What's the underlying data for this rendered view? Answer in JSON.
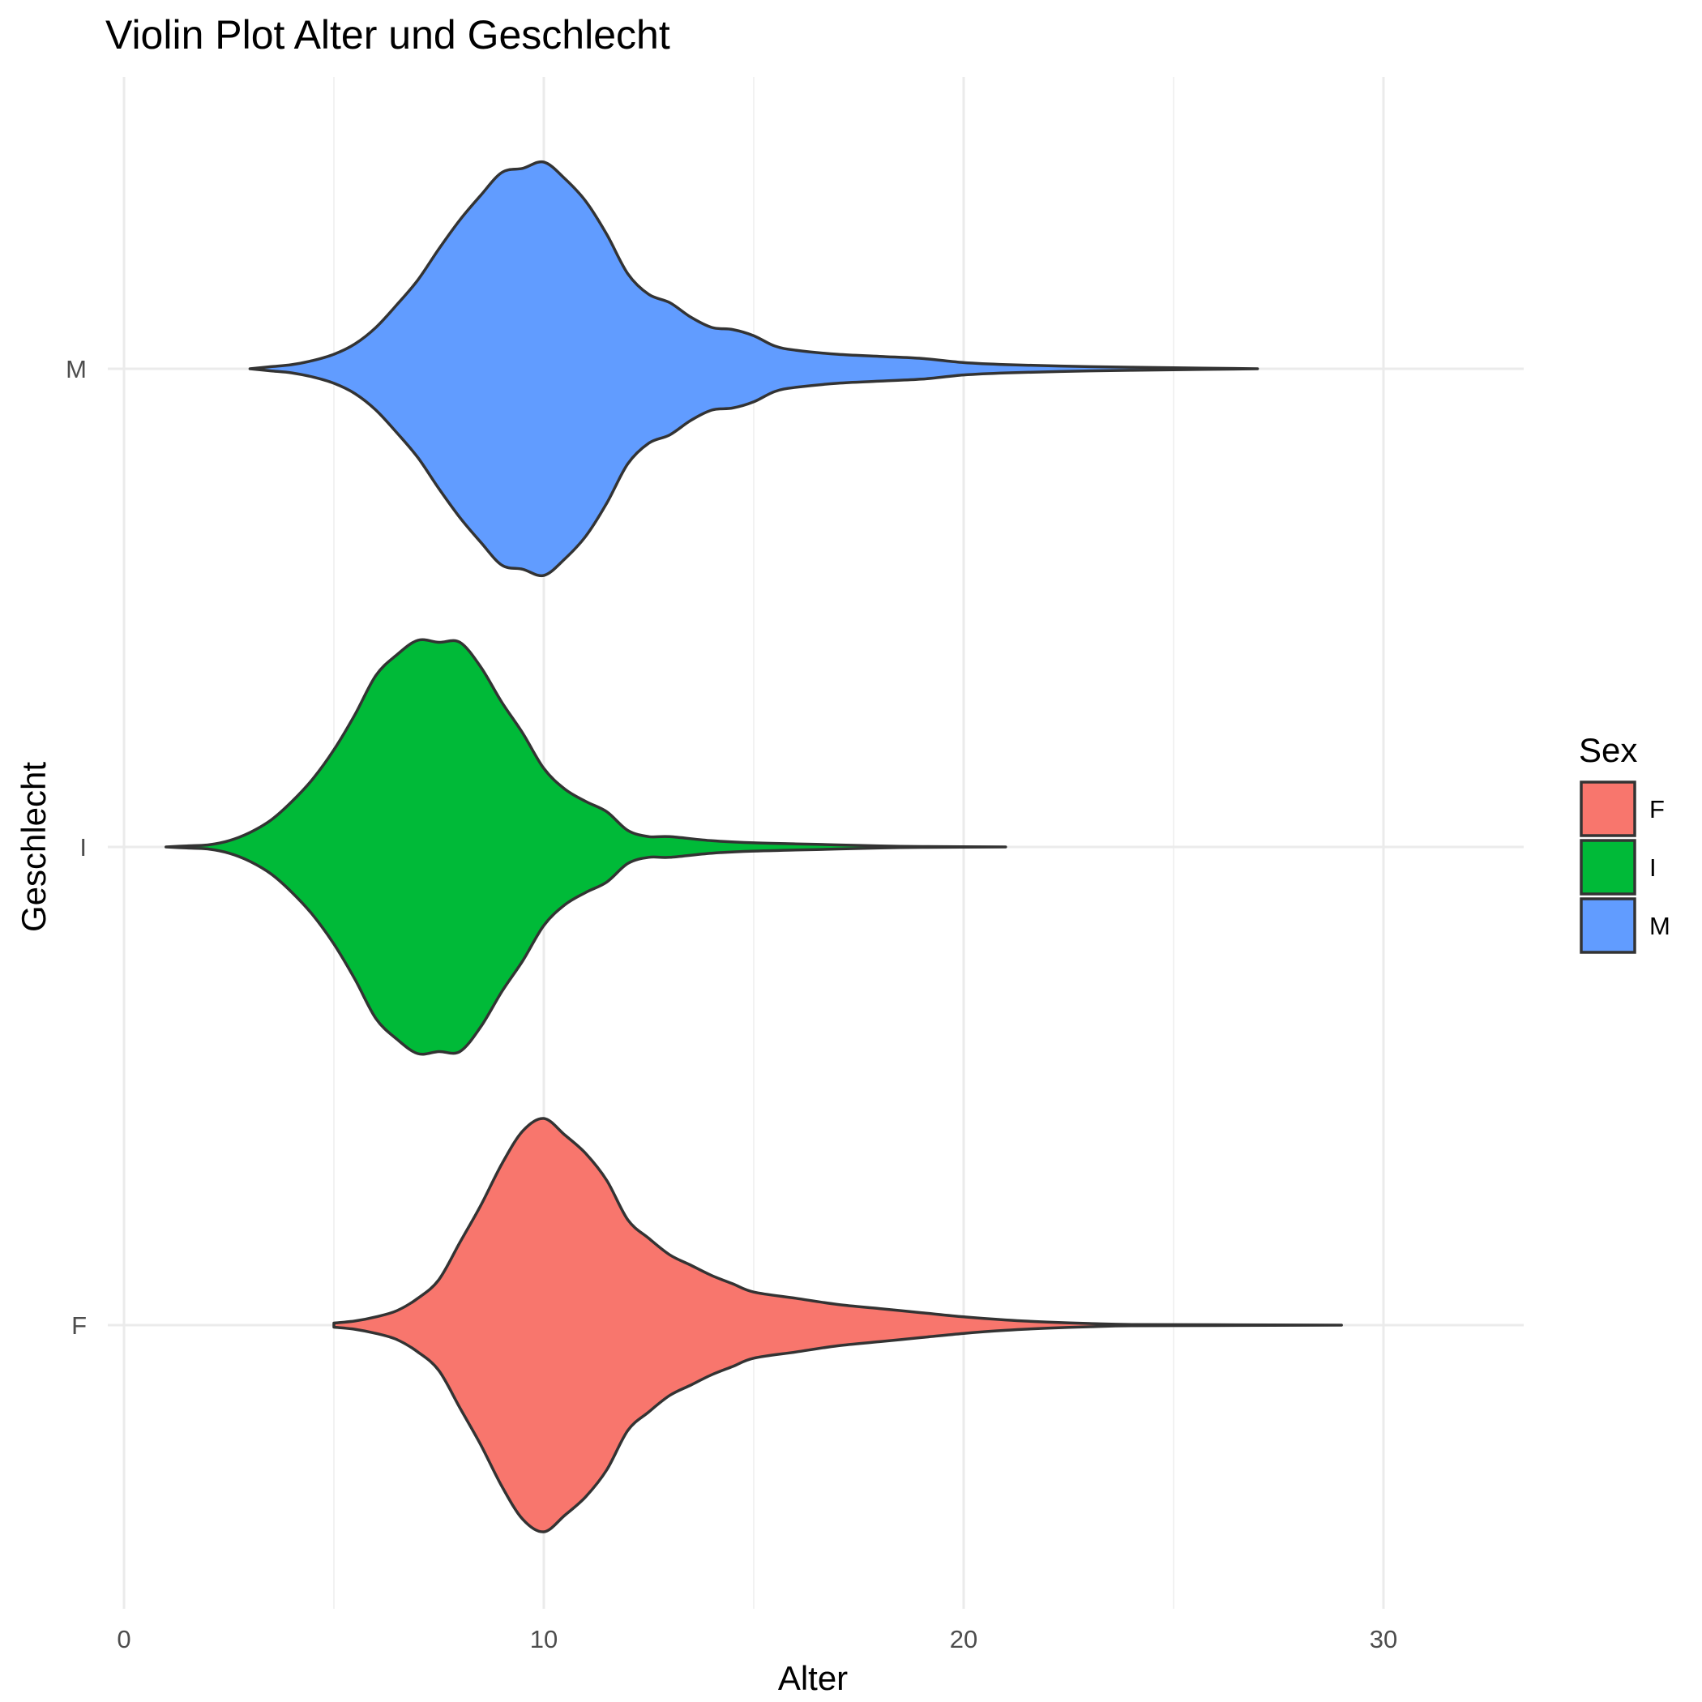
{
  "chart_data": {
    "type": "violin",
    "title": "Violin Plot Alter und Geschlecht",
    "xlabel": "Alter",
    "ylabel": "Geschlecht",
    "xlim": [
      0,
      30
    ],
    "x_ticks": [
      0,
      10,
      20,
      30
    ],
    "x_tick_labels": [
      "0",
      "10",
      "20",
      "30"
    ],
    "x_minor_ticks": [
      5,
      15,
      25
    ],
    "categories": [
      "F",
      "I",
      "M"
    ],
    "grid": true,
    "orientation": "horizontal",
    "legend": {
      "title": "Sex",
      "position": "right",
      "entries": [
        {
          "label": "F",
          "color": "#F8766D"
        },
        {
          "label": "I",
          "color": "#00BA38"
        },
        {
          "label": "M",
          "color": "#619CFF"
        }
      ]
    },
    "series": [
      {
        "category": "M",
        "color": "#619CFF",
        "density": [
          [
            3,
            0.0
          ],
          [
            3.5,
            0.01
          ],
          [
            4,
            0.02
          ],
          [
            4.5,
            0.04
          ],
          [
            5,
            0.07
          ],
          [
            5.5,
            0.12
          ],
          [
            6,
            0.2
          ],
          [
            6.5,
            0.31
          ],
          [
            7,
            0.43
          ],
          [
            7.5,
            0.58
          ],
          [
            8,
            0.72
          ],
          [
            8.5,
            0.84
          ],
          [
            9,
            0.95
          ],
          [
            9.5,
            0.97
          ],
          [
            10,
            1.0
          ],
          [
            10.5,
            0.92
          ],
          [
            11,
            0.81
          ],
          [
            11.5,
            0.65
          ],
          [
            12,
            0.46
          ],
          [
            12.5,
            0.36
          ],
          [
            13,
            0.32
          ],
          [
            13.5,
            0.25
          ],
          [
            14,
            0.2
          ],
          [
            14.5,
            0.19
          ],
          [
            15,
            0.16
          ],
          [
            15.5,
            0.11
          ],
          [
            16,
            0.09
          ],
          [
            17,
            0.07
          ],
          [
            18,
            0.06
          ],
          [
            19,
            0.05
          ],
          [
            20,
            0.03
          ],
          [
            21,
            0.02
          ],
          [
            23,
            0.01
          ],
          [
            25,
            0.005
          ],
          [
            27,
            0.0
          ]
        ]
      },
      {
        "category": "I",
        "color": "#00BA38",
        "density": [
          [
            1,
            0.0
          ],
          [
            1.5,
            0.005
          ],
          [
            2,
            0.01
          ],
          [
            2.5,
            0.03
          ],
          [
            3,
            0.07
          ],
          [
            3.5,
            0.13
          ],
          [
            4,
            0.22
          ],
          [
            4.5,
            0.33
          ],
          [
            5,
            0.47
          ],
          [
            5.5,
            0.64
          ],
          [
            6,
            0.83
          ],
          [
            6.5,
            0.93
          ],
          [
            7,
            1.0
          ],
          [
            7.5,
            0.99
          ],
          [
            8,
            0.99
          ],
          [
            8.5,
            0.87
          ],
          [
            9,
            0.7
          ],
          [
            9.5,
            0.55
          ],
          [
            10,
            0.38
          ],
          [
            10.5,
            0.28
          ],
          [
            11,
            0.22
          ],
          [
            11.5,
            0.17
          ],
          [
            12,
            0.08
          ],
          [
            12.5,
            0.05
          ],
          [
            13,
            0.05
          ],
          [
            14,
            0.03
          ],
          [
            15,
            0.02
          ],
          [
            16,
            0.015
          ],
          [
            17,
            0.01
          ],
          [
            18,
            0.005
          ],
          [
            19,
            0.002
          ],
          [
            21,
            0.0
          ]
        ]
      },
      {
        "category": "F",
        "color": "#F8766D",
        "density": [
          [
            5,
            0.01
          ],
          [
            5.5,
            0.02
          ],
          [
            6,
            0.04
          ],
          [
            6.5,
            0.07
          ],
          [
            7,
            0.13
          ],
          [
            7.5,
            0.22
          ],
          [
            8,
            0.4
          ],
          [
            8.5,
            0.58
          ],
          [
            9,
            0.78
          ],
          [
            9.5,
            0.94
          ],
          [
            10,
            1.0
          ],
          [
            10.5,
            0.92
          ],
          [
            11,
            0.83
          ],
          [
            11.5,
            0.7
          ],
          [
            12,
            0.51
          ],
          [
            12.5,
            0.42
          ],
          [
            13,
            0.34
          ],
          [
            13.5,
            0.29
          ],
          [
            14,
            0.24
          ],
          [
            14.5,
            0.2
          ],
          [
            15,
            0.16
          ],
          [
            16,
            0.13
          ],
          [
            17,
            0.1
          ],
          [
            18,
            0.08
          ],
          [
            19,
            0.06
          ],
          [
            20,
            0.04
          ],
          [
            21,
            0.025
          ],
          [
            22,
            0.015
          ],
          [
            23,
            0.008
          ],
          [
            24,
            0.003
          ],
          [
            26,
            0.002
          ],
          [
            29,
            0.0
          ]
        ]
      }
    ]
  }
}
